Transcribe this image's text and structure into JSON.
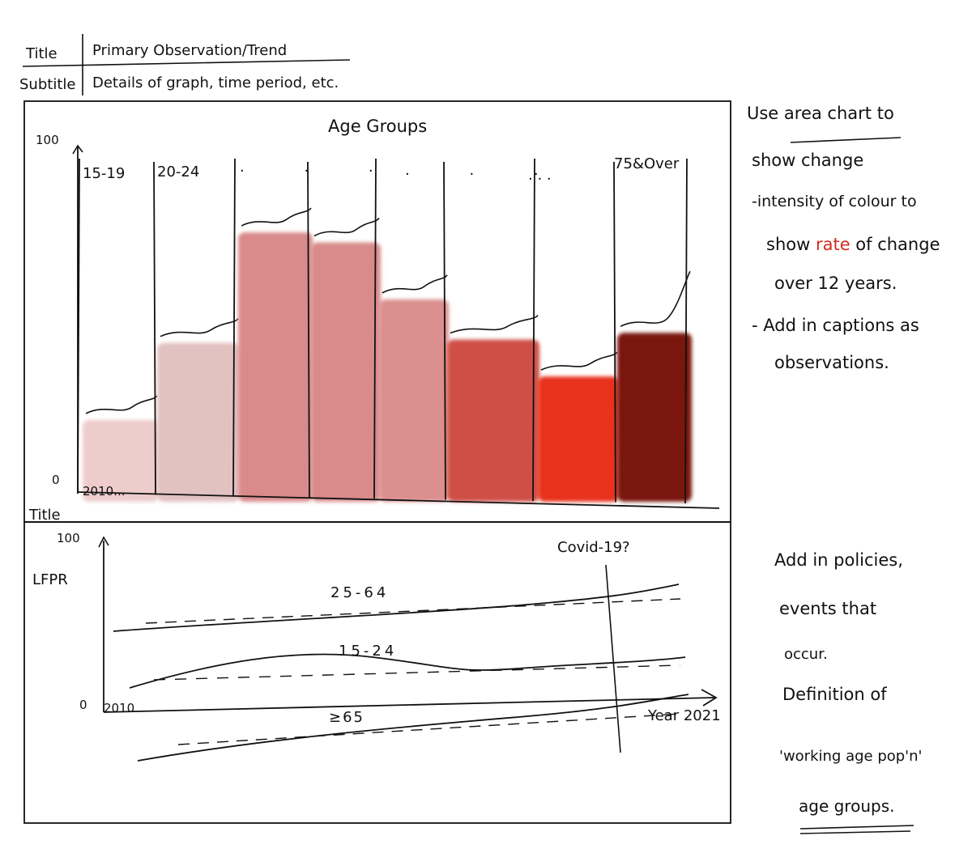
{
  "header": {
    "title_label": "Title",
    "title_text": "Primary Observation/Trend",
    "subtitle_label": "Subtitle",
    "subtitle_text": "Details of graph, time period, etc."
  },
  "top_chart": {
    "heading": "Age Groups",
    "y_max_label": "100",
    "y_min_label": "0",
    "x_start_label": "2010...",
    "panel_labels": [
      "15-19",
      "20-24",
      "75&Over"
    ],
    "panel_dots": ". . .",
    "fill_colors": [
      "#eecccc",
      "#e2c1c1",
      "#d98a8a",
      "#d98a8a",
      "#db8f8f",
      "#cf5047",
      "#e8311f",
      "#7a1810"
    ],
    "fill_levels": [
      0.22,
      0.45,
      0.78,
      0.75,
      0.58,
      0.46,
      0.35,
      0.48
    ]
  },
  "bottom_chart": {
    "title_label": "Title",
    "y_max_label": "100",
    "y_axis_label": "LFPR",
    "y_min_label": "0",
    "x_start_label": "2010",
    "x_end_label": "Year 2021",
    "event_label": "Covid-19?",
    "series_labels": [
      "25-64",
      "15-24",
      "≥65"
    ]
  },
  "notes_top": {
    "line1_pre": "Use ",
    "line1_em": "area chart",
    "line1_post": " to",
    "line2": "show change",
    "line3": "-intensity of colour to",
    "line4_pre": "show ",
    "line4_red": "rate",
    "line4_post": " of change",
    "line5": "over 12 years.",
    "line6": "- Add in captions as",
    "line7": "observations."
  },
  "notes_bottom": {
    "line1": "Add in policies,",
    "line2": "events that",
    "line3": "occur.",
    "line4": "Definition of",
    "line5": "'working age pop'n'",
    "line6": "age groups."
  }
}
